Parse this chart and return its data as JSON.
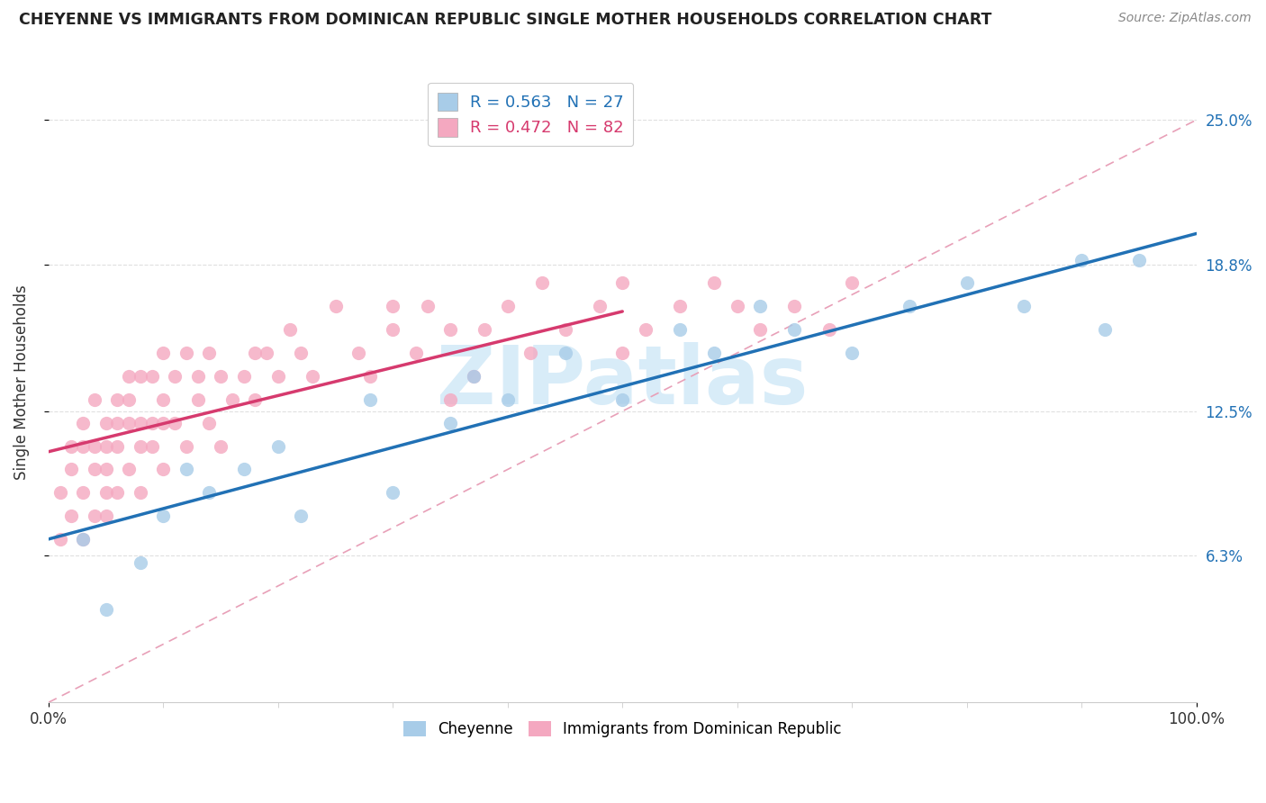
{
  "title": "CHEYENNE VS IMMIGRANTS FROM DOMINICAN REPUBLIC SINGLE MOTHER HOUSEHOLDS CORRELATION CHART",
  "source": "Source: ZipAtlas.com",
  "ylabel": "Single Mother Households",
  "cheyenne_color": "#a8cce8",
  "dr_color": "#f4a8c0",
  "trendline_cheyenne_color": "#2171b5",
  "trendline_dr_color": "#d63a6e",
  "trendline_dashed_color": "#e8a0b8",
  "watermark_text": "ZIPatlas",
  "watermark_color": "#d8ecf8",
  "r_cheyenne": 0.563,
  "n_cheyenne": 27,
  "r_dr": 0.472,
  "n_dr": 82,
  "xmin": 0,
  "xmax": 100,
  "ymin": 0,
  "ymax": 27.5,
  "ytick_vals": [
    6.3,
    12.5,
    18.8,
    25.0
  ],
  "ytick_labels": [
    "6.3%",
    "12.5%",
    "18.8%",
    "25.0%"
  ],
  "xtick_vals": [
    0,
    100
  ],
  "xtick_labels": [
    "0.0%",
    "100.0%"
  ],
  "legend_labels_bottom": [
    "Cheyenne",
    "Immigrants from Dominican Republic"
  ],
  "cheyenne_x": [
    3,
    5,
    8,
    10,
    12,
    14,
    17,
    20,
    22,
    28,
    30,
    35,
    37,
    40,
    45,
    50,
    55,
    58,
    62,
    65,
    70,
    75,
    80,
    85,
    90,
    92,
    95
  ],
  "cheyenne_y": [
    7,
    4,
    6,
    8,
    10,
    9,
    10,
    11,
    8,
    13,
    9,
    12,
    14,
    13,
    15,
    13,
    16,
    15,
    17,
    16,
    15,
    17,
    18,
    17,
    19,
    16,
    19
  ],
  "dr_x": [
    1,
    1,
    2,
    2,
    2,
    3,
    3,
    3,
    3,
    4,
    4,
    4,
    4,
    5,
    5,
    5,
    5,
    5,
    6,
    6,
    6,
    6,
    7,
    7,
    7,
    7,
    8,
    8,
    8,
    8,
    9,
    9,
    9,
    10,
    10,
    10,
    10,
    11,
    11,
    12,
    12,
    13,
    13,
    14,
    14,
    15,
    15,
    16,
    17,
    18,
    18,
    19,
    20,
    21,
    22,
    23,
    25,
    27,
    28,
    30,
    30,
    32,
    33,
    35,
    35,
    37,
    38,
    40,
    42,
    43,
    45,
    48,
    50,
    50,
    52,
    55,
    58,
    60,
    62,
    65,
    68,
    70
  ],
  "dr_y": [
    7,
    9,
    8,
    10,
    11,
    7,
    9,
    11,
    12,
    8,
    10,
    11,
    13,
    8,
    9,
    10,
    11,
    12,
    9,
    11,
    12,
    13,
    10,
    12,
    13,
    14,
    9,
    11,
    12,
    14,
    11,
    12,
    14,
    10,
    12,
    13,
    15,
    12,
    14,
    11,
    15,
    13,
    14,
    12,
    15,
    11,
    14,
    13,
    14,
    15,
    13,
    15,
    14,
    16,
    15,
    14,
    17,
    15,
    14,
    16,
    17,
    15,
    17,
    13,
    16,
    14,
    16,
    17,
    15,
    18,
    16,
    17,
    15,
    18,
    16,
    17,
    18,
    17,
    16,
    17,
    16,
    18
  ]
}
